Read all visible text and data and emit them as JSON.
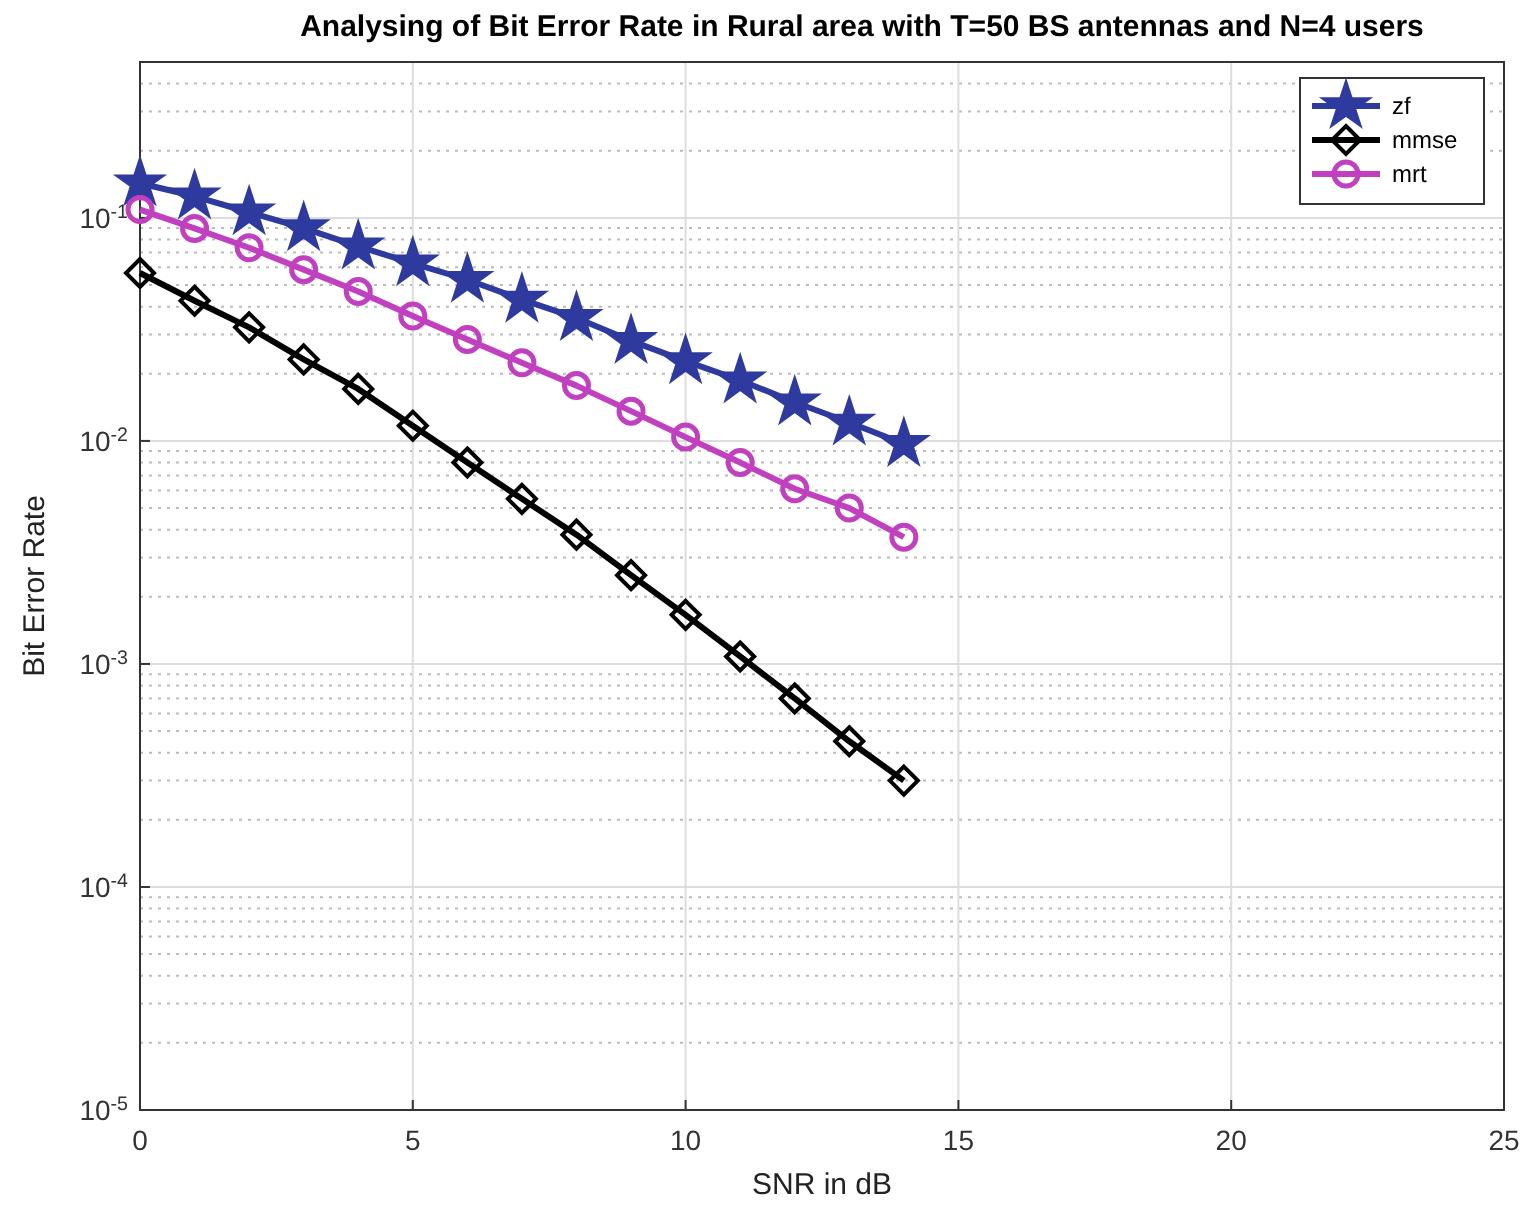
{
  "chart_data": {
    "type": "line",
    "title": "Analysing of Bit Error Rate in Rural area with T=50 BS antennas and N=4 users",
    "xlabel": "SNR in dB",
    "ylabel": "Bit Error Rate",
    "x": [
      0,
      1,
      2,
      3,
      4,
      5,
      6,
      7,
      8,
      9,
      10,
      11,
      12,
      13,
      14
    ],
    "series": [
      {
        "name": "zf",
        "color": "#2e3a9e",
        "marker": "star",
        "values": [
          0.143,
          0.125,
          0.106,
          0.09,
          0.0745,
          0.0626,
          0.0528,
          0.043,
          0.0356,
          0.0281,
          0.0228,
          0.0187,
          0.0149,
          0.0121,
          0.0097
        ]
      },
      {
        "name": "mmse",
        "color": "#000000",
        "marker": "diamond",
        "values": [
          0.0566,
          0.0425,
          0.0323,
          0.0232,
          0.0171,
          0.0117,
          0.008,
          0.0055,
          0.0038,
          0.0025,
          0.00166,
          0.00108,
          0.0007,
          0.00045,
          0.0003
        ]
      },
      {
        "name": "mrt",
        "color": "#c040c0",
        "marker": "circle",
        "values": [
          0.109,
          0.0897,
          0.0735,
          0.0586,
          0.0468,
          0.0363,
          0.0285,
          0.0224,
          0.0177,
          0.0136,
          0.0104,
          0.008,
          0.0061,
          0.005,
          0.0037
        ]
      }
    ],
    "xlim": [
      0,
      25
    ],
    "xticks": [
      0,
      5,
      10,
      15,
      20,
      25
    ],
    "ylim": [
      1e-05,
      0.5
    ],
    "yticks": [
      {
        "value": 1e-05,
        "label": "10$^{-5}$"
      },
      {
        "value": 0.0001,
        "label": "10$^{-4}$"
      },
      {
        "value": 0.001,
        "label": "10$^{-3}$"
      },
      {
        "value": 0.01,
        "label": "10$^{-2}$"
      },
      {
        "value": 0.1,
        "label": "10$^{-1}$"
      }
    ],
    "log": "y",
    "grid": true,
    "legend": "top right",
    "line_style": "solid"
  }
}
